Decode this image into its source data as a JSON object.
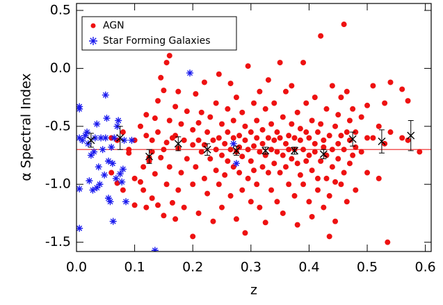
{
  "chart_data": {
    "type": "scatter",
    "x_label": "z",
    "y_label": "α Spectral Index",
    "xlim": [
      0,
      0.61
    ],
    "ylim": [
      -1.58,
      0.56
    ],
    "xticks": [
      {
        "value": 0,
        "label": "0.0"
      },
      0.1,
      0.2,
      0.3,
      0.4,
      0.5,
      0.6
    ],
    "yticks": [
      0.5,
      {
        "value": 0,
        "label": "0.0"
      },
      -0.5,
      {
        "value": -1,
        "label": "-1.0"
      },
      -1.5
    ],
    "legend": "upper left",
    "reference_line": -0.7,
    "reference_color": "#ee2222",
    "series": [
      {
        "name": "AGN",
        "marker": "circle",
        "color": "#ee1111",
        "x": [
          0.06,
          0.06,
          0.07,
          0.07,
          0.08,
          0.08,
          0.09,
          0.09,
          0.1,
          0.1,
          0.1,
          0.11,
          0.11,
          0.115,
          0.115,
          0.12,
          0.12,
          0.12,
          0.125,
          0.125,
          0.13,
          0.13,
          0.13,
          0.135,
          0.135,
          0.14,
          0.14,
          0.14,
          0.145,
          0.145,
          0.15,
          0.15,
          0.15,
          0.155,
          0.155,
          0.155,
          0.16,
          0.16,
          0.16,
          0.165,
          0.165,
          0.17,
          0.17,
          0.17,
          0.175,
          0.175,
          0.175,
          0.18,
          0.18,
          0.185,
          0.185,
          0.19,
          0.19,
          0.2,
          0.2,
          0.2,
          0.2,
          0.205,
          0.205,
          0.21,
          0.21,
          0.21,
          0.215,
          0.215,
          0.22,
          0.22,
          0.22,
          0.225,
          0.225,
          0.23,
          0.23,
          0.235,
          0.235,
          0.24,
          0.24,
          0.24,
          0.245,
          0.245,
          0.245,
          0.25,
          0.25,
          0.25,
          0.255,
          0.255,
          0.26,
          0.26,
          0.26,
          0.265,
          0.265,
          0.265,
          0.27,
          0.27,
          0.27,
          0.275,
          0.275,
          0.275,
          0.28,
          0.28,
          0.28,
          0.285,
          0.285,
          0.285,
          0.29,
          0.29,
          0.29,
          0.295,
          0.295,
          0.295,
          0.3,
          0.3,
          0.3,
          0.305,
          0.305,
          0.305,
          0.31,
          0.31,
          0.31,
          0.315,
          0.315,
          0.315,
          0.32,
          0.32,
          0.32,
          0.325,
          0.325,
          0.325,
          0.33,
          0.33,
          0.33,
          0.335,
          0.335,
          0.335,
          0.34,
          0.34,
          0.34,
          0.345,
          0.345,
          0.345,
          0.35,
          0.35,
          0.35,
          0.355,
          0.355,
          0.355,
          0.36,
          0.36,
          0.36,
          0.365,
          0.365,
          0.365,
          0.37,
          0.37,
          0.37,
          0.375,
          0.375,
          0.375,
          0.38,
          0.38,
          0.38,
          0.385,
          0.385,
          0.385,
          0.39,
          0.39,
          0.39,
          0.395,
          0.395,
          0.395,
          0.4,
          0.4,
          0.4,
          0.405,
          0.405,
          0.405,
          0.41,
          0.41,
          0.41,
          0.415,
          0.415,
          0.415,
          0.42,
          0.42,
          0.42,
          0.425,
          0.425,
          0.425,
          0.43,
          0.43,
          0.43,
          0.435,
          0.435,
          0.435,
          0.44,
          0.44,
          0.44,
          0.445,
          0.445,
          0.445,
          0.45,
          0.45,
          0.45,
          0.455,
          0.455,
          0.455,
          0.46,
          0.46,
          0.46,
          0.465,
          0.465,
          0.465,
          0.47,
          0.47,
          0.47,
          0.475,
          0.475,
          0.48,
          0.48,
          0.48,
          0.49,
          0.49,
          0.5,
          0.5,
          0.5,
          0.51,
          0.51,
          0.52,
          0.52,
          0.53,
          0.53,
          0.535,
          0.54,
          0.54,
          0.56,
          0.56,
          0.57,
          0.57,
          0.59
        ],
        "values": [
          -0.6,
          -0.9,
          -0.62,
          -0.99,
          -0.55,
          -1.05,
          -0.73,
          -0.7,
          -0.62,
          -0.95,
          -1.18,
          -0.5,
          -0.98,
          -0.85,
          -1.05,
          -0.58,
          -0.4,
          -1.2,
          -0.77,
          -0.8,
          -0.62,
          -0.72,
          -1.12,
          -0.43,
          -0.91,
          -0.28,
          -1.18,
          -0.55,
          -0.08,
          -0.77,
          -0.19,
          -0.7,
          -1.27,
          0.05,
          -0.64,
          -1.0,
          0.11,
          -0.45,
          -0.85,
          -0.6,
          -1.16,
          -0.33,
          -0.58,
          -1.3,
          -0.69,
          -0.2,
          -1.05,
          -0.48,
          -0.9,
          -0.62,
          -1.2,
          -0.37,
          -0.78,
          -0.66,
          -0.53,
          -1.0,
          -1.45,
          -0.22,
          -0.85,
          -0.62,
          -0.47,
          -1.25,
          -0.38,
          -0.72,
          -0.12,
          -0.66,
          -0.95,
          -0.55,
          -1.08,
          -0.78,
          -0.42,
          -0.62,
          -1.32,
          -0.3,
          -0.7,
          -0.88,
          -0.05,
          -0.6,
          -1.0,
          -0.48,
          -0.75,
          -1.2,
          -0.65,
          -0.92,
          -0.35,
          -0.8,
          -0.55,
          -0.13,
          -0.7,
          -1.1,
          -0.6,
          -0.85,
          -0.45,
          -0.72,
          -1.3,
          -0.25,
          -0.58,
          -0.9,
          -0.68,
          -0.38,
          -0.76,
          -1.05,
          -0.62,
          -0.5,
          -1.42,
          0.02,
          -0.7,
          -0.95,
          -0.55,
          -0.8,
          -1.15,
          -0.3,
          -0.67,
          -0.88,
          -0.6,
          -1.0,
          -0.45,
          -0.72,
          -1.2,
          -0.2,
          -0.53,
          -0.85,
          -0.65,
          -0.35,
          -0.75,
          -1.33,
          -0.6,
          -0.9,
          -0.1,
          -0.7,
          -0.48,
          -1.05,
          -0.62,
          -0.82,
          -0.3,
          -0.55,
          -1.15,
          -0.72,
          0.05,
          -0.6,
          -0.9,
          -0.75,
          -0.42,
          -1.25,
          -0.65,
          -0.2,
          -0.85,
          -0.58,
          -1.0,
          -0.7,
          -0.48,
          -0.78,
          -0.15,
          -0.7,
          -1.1,
          -0.6,
          -0.38,
          -0.82,
          -1.35,
          -0.62,
          -0.92,
          -0.52,
          0.05,
          -0.7,
          -1.0,
          -0.55,
          -0.8,
          -0.3,
          -0.6,
          -1.15,
          -0.75,
          -0.45,
          -0.88,
          -1.28,
          -0.65,
          -0.25,
          -0.72,
          -0.55,
          -0.95,
          -1.05,
          0.28,
          -0.8,
          -0.48,
          -0.68,
          -1.2,
          -0.62,
          -0.35,
          -0.75,
          -0.95,
          -0.58,
          -1.1,
          -1.45,
          -0.7,
          -0.15,
          -0.85,
          -0.5,
          -0.98,
          -1.32,
          -0.65,
          -0.4,
          -0.78,
          -0.58,
          -1.0,
          -0.25,
          0.38,
          -0.7,
          -0.9,
          -0.55,
          -1.15,
          -0.2,
          -0.62,
          -0.82,
          -0.45,
          -0.35,
          -0.75,
          -0.68,
          -0.55,
          -1.05,
          -0.42,
          -0.72,
          -0.6,
          -0.32,
          -0.9,
          -0.15,
          -0.6,
          -0.5,
          -0.95,
          -0.65,
          -0.3,
          -1.5,
          -0.55,
          -0.12,
          -0.18,
          -0.6,
          -0.28,
          -0.62,
          -0.72
        ]
      },
      {
        "name": "Star Forming Galaxies",
        "marker": "asterisk",
        "color": "#1a1aee",
        "x": [
          0.005,
          0.005,
          0.005,
          0.005,
          0.005,
          0.01,
          0.015,
          0.018,
          0.02,
          0.022,
          0.025,
          0.028,
          0.03,
          0.032,
          0.035,
          0.035,
          0.038,
          0.04,
          0.042,
          0.045,
          0.048,
          0.05,
          0.05,
          0.052,
          0.055,
          0.055,
          0.058,
          0.06,
          0.062,
          0.063,
          0.065,
          0.068,
          0.07,
          0.072,
          0.075,
          0.078,
          0.08,
          0.082,
          0.085,
          0.095,
          0.135,
          0.195,
          0.275,
          0.27
        ],
        "values": [
          -0.33,
          -0.35,
          -0.6,
          -1.04,
          -1.38,
          -0.62,
          -0.58,
          -0.55,
          -0.65,
          -0.97,
          -0.75,
          -1.05,
          -0.72,
          -0.6,
          -1.03,
          -0.48,
          -0.85,
          -1.0,
          -0.6,
          -0.7,
          -0.92,
          -0.6,
          -0.23,
          -0.43,
          -0.8,
          -1.12,
          -1.15,
          -0.68,
          -0.82,
          -1.32,
          -0.6,
          -0.95,
          -0.5,
          -0.45,
          -0.91,
          -0.98,
          -0.87,
          -0.62,
          -1.15,
          -0.62,
          -1.57,
          -0.04,
          -0.82,
          -0.65
        ]
      },
      {
        "marker": "binned",
        "color": "#000000",
        "x": [
          0.025,
          0.075,
          0.125,
          0.175,
          0.225,
          0.275,
          0.325,
          0.375,
          0.425,
          0.475,
          0.525,
          0.575
        ],
        "values": [
          -0.62,
          -0.6,
          -0.76,
          -0.65,
          -0.7,
          -0.71,
          -0.71,
          -0.71,
          -0.74,
          -0.61,
          -0.63,
          -0.58
        ],
        "errors": [
          0.06,
          0.1,
          0.06,
          0.06,
          0.05,
          0.04,
          0.03,
          0.03,
          0.04,
          0.06,
          0.1,
          0.13
        ]
      }
    ]
  }
}
